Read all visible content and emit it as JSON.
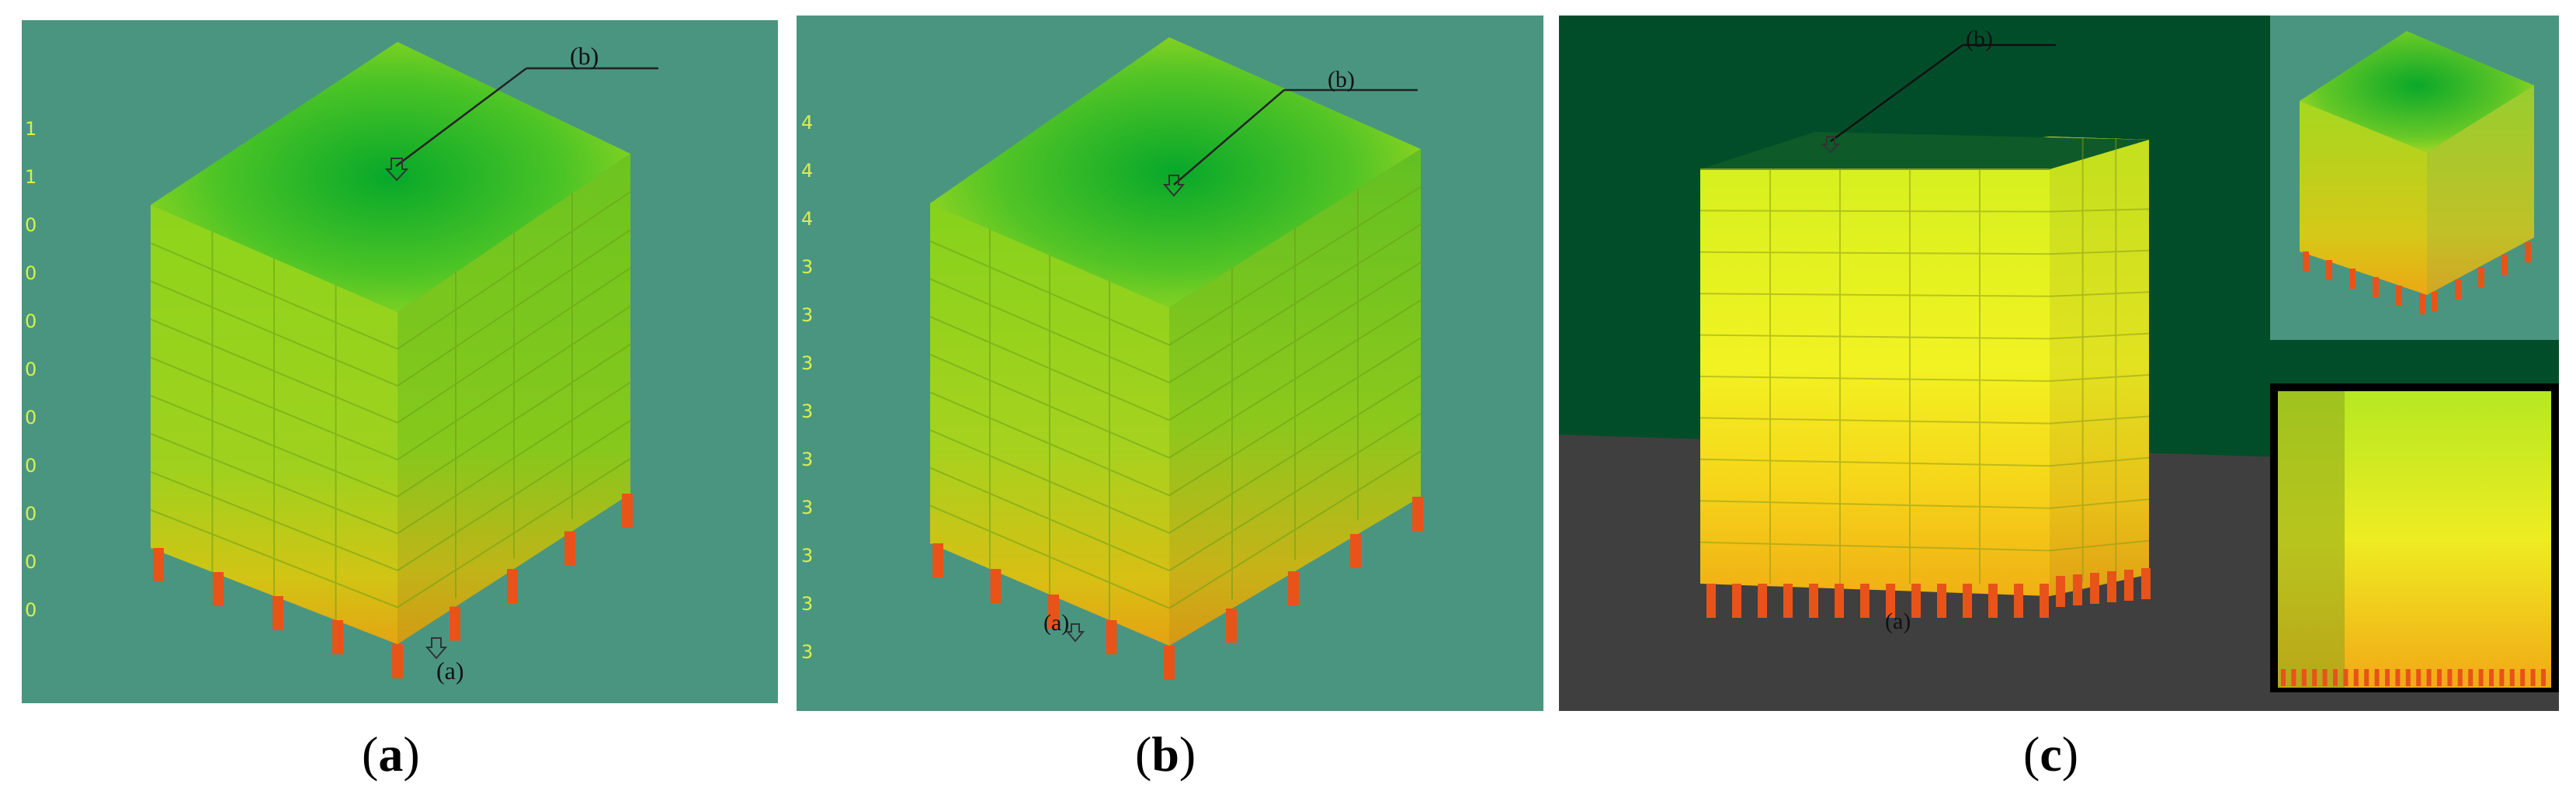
{
  "panels": [
    {
      "id": "a",
      "caption_open": "(",
      "caption_letter": "a",
      "caption_close": ")",
      "markers": {
        "top": "(b)",
        "bottom": "(a)"
      },
      "legend_ticks": [
        "1",
        "1",
        "0",
        "0",
        "0",
        "0",
        "0",
        "0",
        "0",
        "0",
        "0"
      ],
      "background": "#4a9580"
    },
    {
      "id": "b",
      "caption_open": "(",
      "caption_letter": "b",
      "caption_close": ")",
      "markers": {
        "top": "(b)",
        "bottom": "(a)"
      },
      "legend_ticks": [
        "4",
        "4",
        "4",
        "3",
        "3",
        "3",
        "3",
        "3",
        "3",
        "3",
        "3",
        "3"
      ],
      "background": "#4a9580"
    },
    {
      "id": "c",
      "caption_open": "(",
      "caption_letter": "c",
      "caption_close": ")",
      "markers": {
        "top": "(b)",
        "bottom": "(a)"
      },
      "background": "#014d2a",
      "floor_color": "#3f3f3f"
    }
  ],
  "colors": {
    "roof_center": "#0fb02a",
    "roof_edge": "#8fd620",
    "facade_top": "#7fd21e",
    "facade_bottom": "#e0b010",
    "column": "#e8531a"
  }
}
